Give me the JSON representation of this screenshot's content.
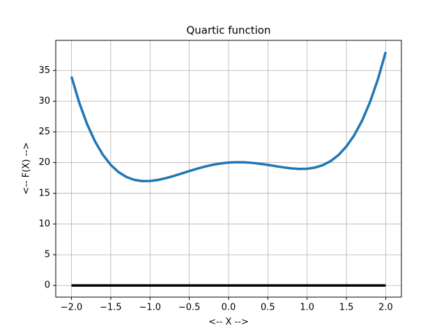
{
  "chart_data": {
    "type": "line",
    "title": "Quartic function",
    "x_label": "<-- X -->",
    "y_label": "<-- F(X) -->",
    "x": [
      -2.0,
      -1.9,
      -1.8,
      -1.7,
      -1.6,
      -1.5,
      -1.4,
      -1.3,
      -1.2,
      -1.1,
      -1.0,
      -0.9,
      -0.8,
      -0.7,
      -0.6,
      -0.5,
      -0.4,
      -0.3,
      -0.2,
      -0.1,
      0.0,
      0.1,
      0.2,
      0.3,
      0.4,
      0.5,
      0.6,
      0.7,
      0.8,
      0.9,
      1.0,
      1.1,
      1.2,
      1.3,
      1.4,
      1.5,
      1.6,
      1.7,
      1.8,
      1.9,
      2.0
    ],
    "series": [
      {
        "color": "#1f77b4",
        "values": [
          34,
          29.7242,
          26.2352,
          23.4442,
          21.2672,
          19.625,
          18.4432,
          17.6522,
          17.1872,
          16.9882,
          17,
          17.1722,
          17.4592,
          17.8202,
          18.2192,
          18.625,
          19.0112,
          19.3562,
          19.6432,
          19.8602,
          20,
          20.0602,
          20.0432,
          19.9562,
          19.8112,
          19.625,
          19.4192,
          19.2202,
          19.0592,
          18.9722,
          19,
          19.1882,
          19.5872,
          20.2522,
          21.2432,
          22.625,
          24.4672,
          26.8442,
          29.8352,
          33.5242,
          38
        ]
      },
      {
        "color": "#000000",
        "values": [
          0,
          0,
          0,
          0,
          0,
          0,
          0,
          0,
          0,
          0,
          0,
          0,
          0,
          0,
          0,
          0,
          0,
          0,
          0,
          0,
          0,
          0,
          0,
          0,
          0,
          0,
          0,
          0,
          0,
          0,
          0,
          0,
          0,
          0,
          0,
          0,
          0,
          0,
          0,
          0,
          0
        ]
      }
    ],
    "xlim": [
      -2.2,
      2.2
    ],
    "ylim": [
      -1.9,
      39.9
    ],
    "xticks": [
      {
        "value": -2.0,
        "label": "−2.0"
      },
      {
        "value": -1.5,
        "label": "−1.5"
      },
      {
        "value": -1.0,
        "label": "−1.0"
      },
      {
        "value": -0.5,
        "label": "−0.5"
      },
      {
        "value": 0.0,
        "label": "0.0"
      },
      {
        "value": 0.5,
        "label": "0.5"
      },
      {
        "value": 1.0,
        "label": "1.0"
      },
      {
        "value": 1.5,
        "label": "1.5"
      },
      {
        "value": 2.0,
        "label": "2.0"
      }
    ],
    "yticks": [
      0,
      5,
      10,
      15,
      20,
      25,
      30,
      35
    ],
    "grid": true
  }
}
